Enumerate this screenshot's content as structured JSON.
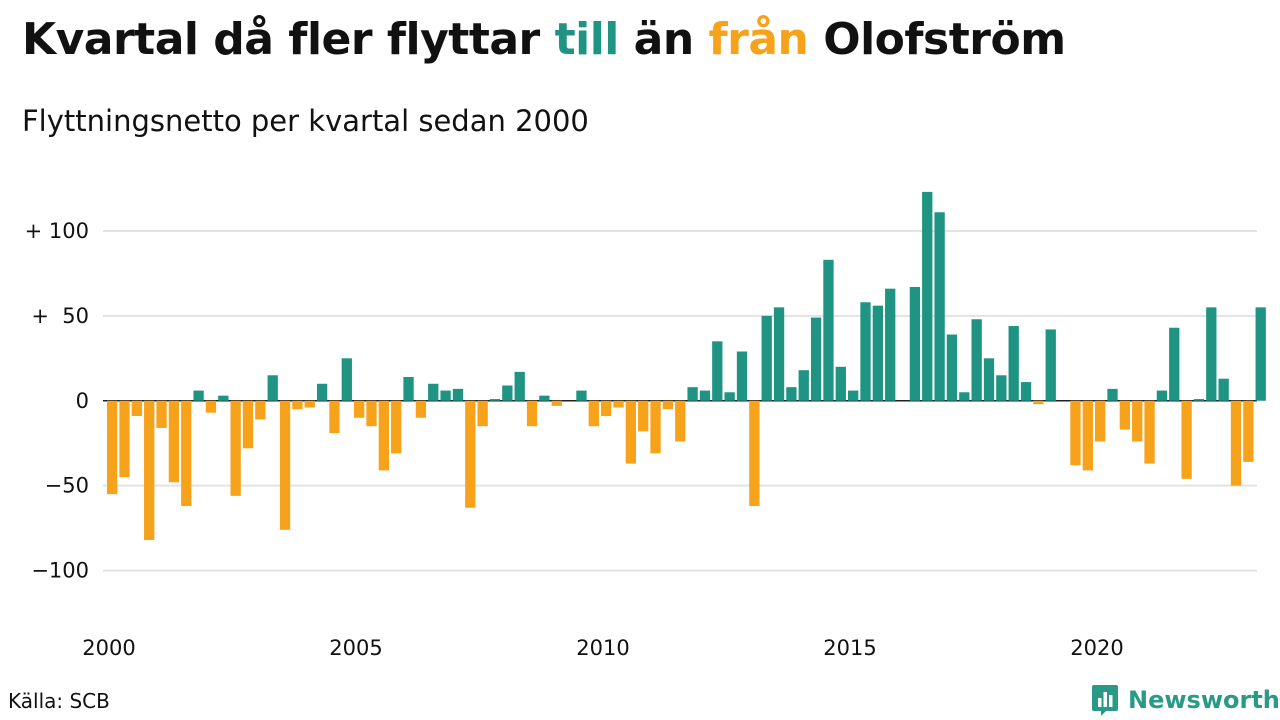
{
  "title": {
    "before": "Kvartal då fler flyttar ",
    "till": "till",
    "middle": " än ",
    "fran": "från",
    "after": " Olofström"
  },
  "subtitle": "Flyttningsnetto per kvartal sedan 2000",
  "source": "Källa: SCB",
  "brand": "Newsworthy",
  "colors": {
    "positive": "#1f9483",
    "negative": "#f7a21b",
    "grid": "#e3e3e3",
    "text": "#111111",
    "brand": "#2a9a86"
  },
  "chart_data": {
    "type": "bar",
    "x_start": "2000 Q1",
    "x_ticks": [
      {
        "label": "2000",
        "year": 2000
      },
      {
        "label": "2005",
        "year": 2005
      },
      {
        "label": "2010",
        "year": 2010
      },
      {
        "label": "2015",
        "year": 2015
      },
      {
        "label": "2020",
        "year": 2020
      }
    ],
    "y_ticks": [
      {
        "label": "+ 100",
        "value": 100
      },
      {
        "label": "+  50",
        "value": 50
      },
      {
        "label": "0",
        "value": 0
      },
      {
        "label": "−50",
        "value": -50
      },
      {
        "label": "−100",
        "value": -100
      }
    ],
    "ylim": [
      -135,
      130
    ],
    "grid": true,
    "values": [
      -55,
      -45,
      -9,
      -82,
      -16,
      -48,
      -62,
      6,
      -7,
      3,
      -56,
      -28,
      -11,
      15,
      -76,
      -5,
      -4,
      10,
      -19,
      25,
      -10,
      -15,
      -41,
      -31,
      14,
      -10,
      10,
      6,
      7,
      -63,
      -15,
      1,
      9,
      17,
      -15,
      3,
      -3,
      0,
      6,
      -15,
      -9,
      -4,
      -37,
      -18,
      -31,
      -5,
      -24,
      8,
      6,
      35,
      5,
      29,
      -62,
      50,
      55,
      8,
      18,
      49,
      83,
      20,
      6,
      58,
      56,
      66,
      0,
      67,
      123,
      111,
      39,
      5,
      48,
      25,
      15,
      44,
      11,
      -2,
      42,
      0,
      -38,
      -41,
      -24,
      7,
      -17,
      -24,
      -37,
      6,
      43,
      -46,
      1,
      55,
      13,
      -50,
      -36,
      55
    ]
  }
}
